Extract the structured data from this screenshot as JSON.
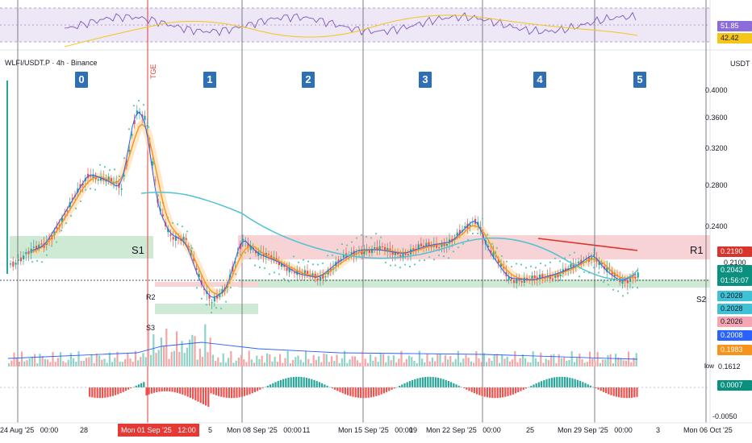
{
  "header": {
    "ticker": "WLFI/USDT.P",
    "separator1": "·",
    "timeframe": "4h",
    "separator2": "·",
    "exchange": "Binance",
    "currency": "USDT"
  },
  "cycles": [
    "0",
    "1",
    "2",
    "3",
    "4",
    "5"
  ],
  "annotations": {
    "tge": "TGE",
    "s1": "S1",
    "s2": "S2",
    "s3": "S3",
    "r1": "R1",
    "r2": "R2",
    "low_tag": "low"
  },
  "price_axis": [
    "0.4000",
    "0.3600",
    "0.3200",
    "0.2800",
    "0.2400",
    "0.2100",
    "0.1612",
    "-0.0050"
  ],
  "badges": {
    "rsi": [
      {
        "value": "51.85",
        "bg": "#8c6cd8",
        "fg": "#ffffff"
      },
      {
        "value": "42.42",
        "bg": "#f5c518",
        "fg": "#131722"
      }
    ],
    "r1_price": {
      "value": "0.2190",
      "bg": "#d9342b",
      "fg": "#ffffff"
    },
    "last": {
      "price": "0.2043",
      "countdown": "01:56:07",
      "bg": "#0b8f7e",
      "fg": "#ffffff"
    },
    "levels": [
      {
        "value": "0.2028",
        "bg": "#3fc1d6",
        "fg": "#131722"
      },
      {
        "value": "0.2028",
        "bg": "#3fc1d6",
        "fg": "#131722"
      },
      {
        "value": "0.2026",
        "bg": "#f6a6b2",
        "fg": "#131722"
      },
      {
        "value": "0.2008",
        "bg": "#2962ff",
        "fg": "#ffffff"
      },
      {
        "value": "0.1983",
        "bg": "#f7931a",
        "fg": "#ffffff"
      }
    ],
    "macd": {
      "value": "0.0007",
      "bg": "#0b8f7e",
      "fg": "#ffffff"
    }
  },
  "time_axis": [
    {
      "label": "24 Aug '25",
      "time": "00:00"
    },
    {
      "label": "28"
    },
    {
      "label": "Mon 01 Sep '25",
      "time": "12:00",
      "highlight": true
    },
    {
      "label": "5"
    },
    {
      "label": "Mon 08 Sep '25",
      "time": "00:00"
    },
    {
      "label": "11"
    },
    {
      "label": "Mon 15 Sep '25",
      "time": "00:00"
    },
    {
      "label": "19"
    },
    {
      "label": "Mon 22 Sep '25",
      "time": "00:00"
    },
    {
      "label": "25"
    },
    {
      "label": "Mon 29 Sep '25",
      "time": "00:00"
    },
    {
      "label": "3"
    },
    {
      "label": "Mon 06 Oct '25"
    }
  ],
  "colors": {
    "up": "#26a69a",
    "down": "#ef5350",
    "ema_orange": "#f7931a",
    "sma_cyan": "#4fc3d1",
    "psar": "#5cc9b5",
    "rsi_line": "#7e57c2",
    "rsi_ma": "#f5c518",
    "resistance_zone": "#f8d3d6",
    "support_zone": "#cfead4",
    "cycle_box": "#2f6fb4",
    "r1_line": "#d9342b",
    "volume_ma": "#2962ff",
    "tge": "#e53935"
  }
}
